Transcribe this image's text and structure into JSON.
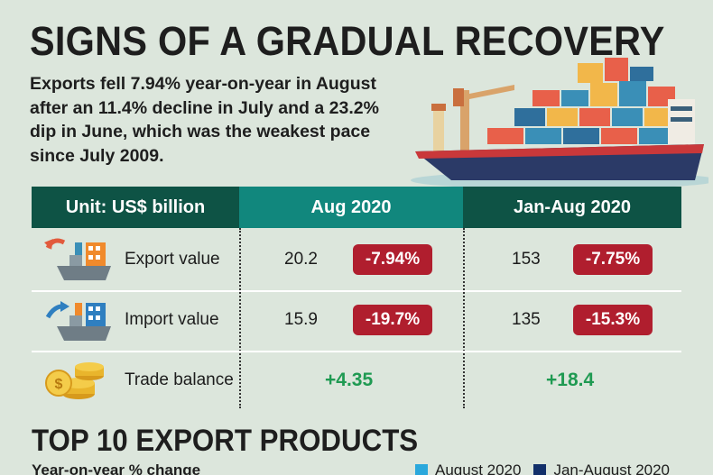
{
  "headline": "SIGNS OF A GRADUAL RECOVERY",
  "lede": "Exports fell 7.94% year-on-year in August after an 11.4% decline in July and a 23.2% dip in June, which was the weakest pace since July 2009.",
  "table": {
    "headers": {
      "unit": "Unit: US$ billion",
      "aug": "Aug 2020",
      "ytd": "Jan-Aug 2020"
    },
    "rows": [
      {
        "label": "Export value",
        "aug_value": "20.2",
        "aug_change": "-7.94%",
        "ytd_value": "153",
        "ytd_change": "-7.75%"
      },
      {
        "label": "Import value",
        "aug_value": "15.9",
        "aug_change": "-19.7%",
        "ytd_value": "135",
        "ytd_change": "-15.3%"
      },
      {
        "label": "Trade balance",
        "aug_balance": "+4.35",
        "ytd_balance": "+18.4"
      }
    ]
  },
  "section": {
    "title": "TOP 10 EXPORT PRODUCTS",
    "subtitle": "Year-on-year % change",
    "legend": [
      {
        "label": "August 2020",
        "color": "#2aa8dc"
      },
      {
        "label": "Jan-August 2020",
        "color": "#12306a"
      }
    ]
  },
  "colors": {
    "background": "#dce6dc",
    "header_dark": "#0e5345",
    "header_teal": "#11877d",
    "badge_red": "#b01e2e",
    "positive_green": "#1f9a52"
  }
}
